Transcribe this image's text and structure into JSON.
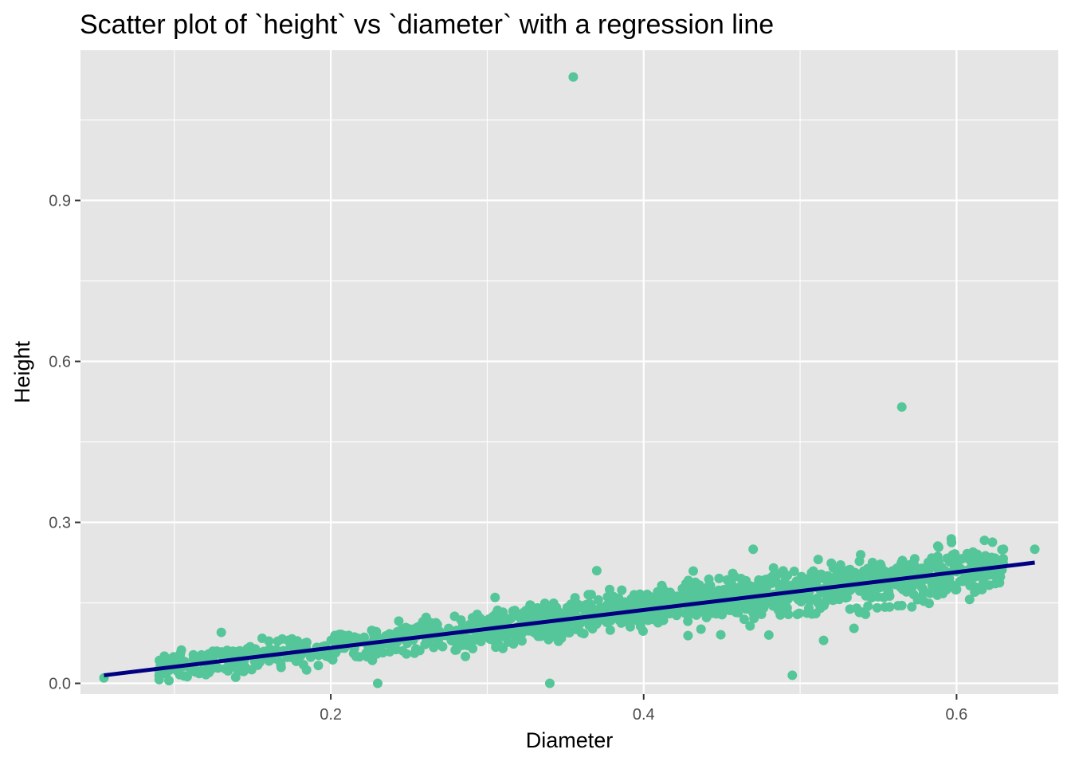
{
  "chart_data": {
    "type": "scatter",
    "title": "Scatter plot of `height` vs `diameter` with a regression line",
    "xlabel": "Diameter",
    "ylabel": "Height",
    "xlim": [
      0.04,
      0.665
    ],
    "ylim": [
      -0.02,
      1.18
    ],
    "x_ticks": [
      0.2,
      0.4,
      0.6
    ],
    "x_tick_labels": [
      "0.2",
      "0.4",
      "0.6"
    ],
    "y_ticks": [
      0.0,
      0.3,
      0.6,
      0.9
    ],
    "y_tick_labels": [
      "0.0",
      "0.3",
      "0.6",
      "0.9"
    ],
    "grid": true,
    "legend": "none",
    "colors": {
      "points": "#55c699",
      "regression_line": "#000080",
      "panel_background": "#e5e5e5",
      "grid": "#ffffff"
    },
    "regression_line": {
      "x": [
        0.055,
        0.65
      ],
      "y": [
        0.015,
        0.225
      ]
    },
    "notable_points": [
      {
        "x": 0.355,
        "y": 1.13
      },
      {
        "x": 0.565,
        "y": 0.515
      },
      {
        "x": 0.23,
        "y": 0.0
      },
      {
        "x": 0.34,
        "y": 0.0
      },
      {
        "x": 0.495,
        "y": 0.015
      },
      {
        "x": 0.055,
        "y": 0.01
      },
      {
        "x": 0.65,
        "y": 0.25
      },
      {
        "x": 0.63,
        "y": 0.25
      },
      {
        "x": 0.47,
        "y": 0.25
      },
      {
        "x": 0.37,
        "y": 0.21
      },
      {
        "x": 0.305,
        "y": 0.16
      },
      {
        "x": 0.13,
        "y": 0.095
      },
      {
        "x": 0.515,
        "y": 0.08
      },
      {
        "x": 0.48,
        "y": 0.09
      },
      {
        "x": 0.31,
        "y": 0.065
      },
      {
        "x": 0.6,
        "y": 0.175
      },
      {
        "x": 0.565,
        "y": 0.145
      },
      {
        "x": 0.51,
        "y": 0.13
      }
    ],
    "point_cloud": {
      "description_points_count": 4177,
      "x_range": [
        0.09,
        0.63
      ],
      "trend_slope": 0.353,
      "trend_intercept": -0.004,
      "spread_sd": 0.018
    }
  }
}
